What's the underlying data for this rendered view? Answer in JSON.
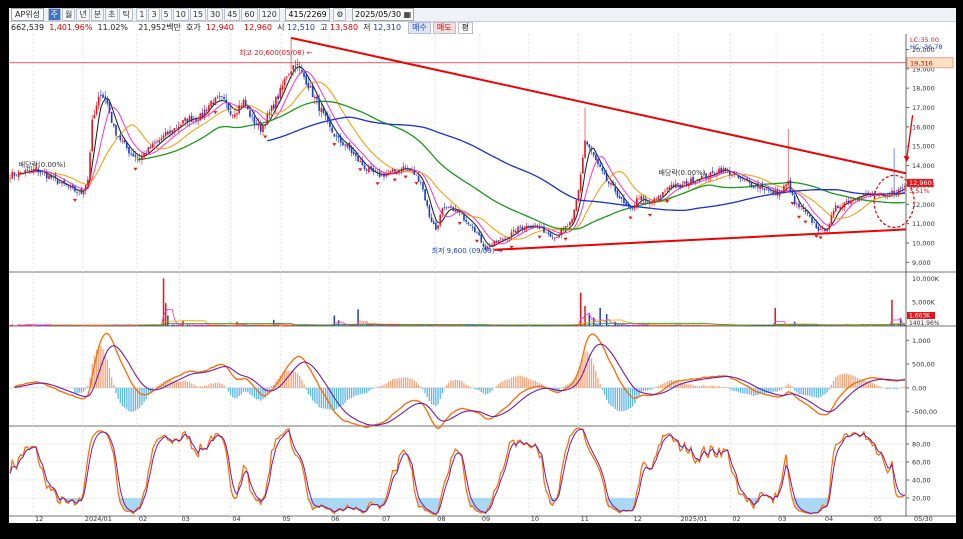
{
  "toolbar": {
    "stock_name": "AP위성",
    "period_buttons": [
      "주",
      "월",
      "년",
      "분",
      "초",
      "틱"
    ],
    "interval_buttons": [
      "1",
      "3",
      "5",
      "10",
      "15",
      "30",
      "45",
      "60",
      "120"
    ],
    "bar_count": "415/2269",
    "date": "2025/05/30"
  },
  "quote": {
    "volume": "662,539",
    "turnover": "1,401.96%",
    "change_rate": "11.02%",
    "amount": "21,952백만",
    "hoga_label": "호가",
    "ask": "12,940",
    "bid": "12,960",
    "open_label": "시",
    "open": "12,510",
    "high_label": "고",
    "high": "13,580",
    "low_label": "저",
    "low": "12,310",
    "buy_label": "매수",
    "sell_label": "매도",
    "flat_label": "평"
  },
  "colors": {
    "up": "#e8141c",
    "down": "#1a3fd0",
    "ma5": "#1a1a1a",
    "ma10": "#ff33cc",
    "ma20": "#ff9900",
    "ma60": "#1a9a1a",
    "ma120": "#1a2fd0",
    "macd": "#ff6a00",
    "signal": "#7a1aa0",
    "trend": "#ee0000"
  },
  "chart_data": [
    {
      "type": "candlestick",
      "panel": "price",
      "y_range": [
        8500,
        20800
      ],
      "y_ticks": [
        "9,000",
        "10,000",
        "11,000",
        "12,000",
        "13,000",
        "14,000",
        "15,000",
        "16,000",
        "17,000",
        "18,000",
        "19,000",
        "20,000"
      ],
      "x_ticks": [
        "12",
        "2024/01",
        "02",
        "03",
        "04",
        "05",
        "06",
        "07",
        "08",
        "09",
        "10",
        "11",
        "12",
        "2025/01",
        "02",
        "03",
        "04",
        "05",
        "05/30"
      ],
      "close_anchors": [
        [
          0,
          13500
        ],
        [
          12,
          13800
        ],
        [
          25,
          13000
        ],
        [
          30,
          12700
        ],
        [
          33,
          12600
        ],
        [
          36,
          13300
        ],
        [
          38,
          16200
        ],
        [
          42,
          17800
        ],
        [
          45,
          17200
        ],
        [
          48,
          15900
        ],
        [
          52,
          15200
        ],
        [
          56,
          14600
        ],
        [
          60,
          14400
        ],
        [
          64,
          14800
        ],
        [
          70,
          15400
        ],
        [
          76,
          15900
        ],
        [
          82,
          16400
        ],
        [
          88,
          16500
        ],
        [
          93,
          17300
        ],
        [
          98,
          17400
        ],
        [
          103,
          16700
        ],
        [
          108,
          17300
        ],
        [
          112,
          16400
        ],
        [
          116,
          15900
        ],
        [
          120,
          16700
        ],
        [
          125,
          17800
        ],
        [
          128,
          18700
        ],
        [
          132,
          19300
        ],
        [
          137,
          18400
        ],
        [
          140,
          17700
        ],
        [
          144,
          16800
        ],
        [
          148,
          15900
        ],
        [
          152,
          15300
        ],
        [
          156,
          15000
        ],
        [
          160,
          14400
        ],
        [
          165,
          13800
        ],
        [
          170,
          13500
        ],
        [
          176,
          13600
        ],
        [
          182,
          13900
        ],
        [
          186,
          13700
        ],
        [
          190,
          13200
        ],
        [
          194,
          11400
        ],
        [
          197,
          10700
        ],
        [
          200,
          11700
        ],
        [
          205,
          11800
        ],
        [
          210,
          11300
        ],
        [
          214,
          10900
        ],
        [
          217,
          10300
        ],
        [
          220,
          9700
        ],
        [
          224,
          10000
        ],
        [
          230,
          10300
        ],
        [
          236,
          10800
        ],
        [
          242,
          10900
        ],
        [
          248,
          10600
        ],
        [
          252,
          10300
        ],
        [
          256,
          10700
        ],
        [
          260,
          11100
        ],
        [
          263,
          12700
        ],
        [
          266,
          15300
        ],
        [
          269,
          14700
        ],
        [
          272,
          14000
        ],
        [
          276,
          13200
        ],
        [
          280,
          12700
        ],
        [
          284,
          12000
        ],
        [
          287,
          11700
        ],
        [
          291,
          12400
        ],
        [
          295,
          12000
        ],
        [
          300,
          12300
        ],
        [
          305,
          13000
        ],
        [
          310,
          12900
        ],
        [
          315,
          13200
        ],
        [
          320,
          13400
        ],
        [
          324,
          13500
        ],
        [
          328,
          13800
        ],
        [
          332,
          13700
        ],
        [
          336,
          13400
        ],
        [
          340,
          13200
        ],
        [
          344,
          13000
        ],
        [
          348,
          12900
        ],
        [
          352,
          12600
        ],
        [
          356,
          12600
        ],
        [
          360,
          13100
        ],
        [
          363,
          12000
        ],
        [
          366,
          11800
        ],
        [
          369,
          11400
        ],
        [
          372,
          11000
        ],
        [
          375,
          10600
        ],
        [
          378,
          10800
        ],
        [
          382,
          11800
        ],
        [
          386,
          12100
        ],
        [
          390,
          12300
        ],
        [
          394,
          12500
        ],
        [
          398,
          12500
        ],
        [
          402,
          12500
        ],
        [
          405,
          12300
        ],
        [
          408,
          12600
        ],
        [
          411,
          12700
        ],
        [
          414,
          12950
        ]
      ],
      "ma_periods": [
        5,
        10,
        20,
        60,
        120
      ],
      "reference_line": "19,316",
      "price_tags": [
        "12,960",
        "3.51%"
      ],
      "legend_top": [
        "LC:35.00",
        "HC:-36.78"
      ],
      "annotations": [
        {
          "text": "최고 20,600(05/08) ←",
          "kind": "high"
        },
        {
          "text": "최저 9,600 (09/09) →",
          "kind": "low"
        },
        {
          "text": "배당락(0.00%)",
          "kind": "ex-div"
        },
        {
          "text": "배당락(0.00%)",
          "kind": "ex-div"
        }
      ]
    },
    {
      "type": "bar",
      "panel": "volume",
      "y_ticks": [
        "10,000K",
        "5,000K"
      ],
      "labels": [
        "1,663K",
        "1401.96%"
      ],
      "spikes": [
        [
          71,
          10000
        ],
        [
          72,
          4800
        ],
        [
          73,
          2200
        ],
        [
          80,
          1200
        ],
        [
          105,
          900
        ],
        [
          122,
          1300
        ],
        [
          150,
          2200
        ],
        [
          152,
          1200
        ],
        [
          161,
          3500
        ],
        [
          264,
          7000
        ],
        [
          266,
          4200
        ],
        [
          268,
          2400
        ],
        [
          270,
          1800
        ],
        [
          273,
          3800
        ],
        [
          276,
          2500
        ],
        [
          280,
          900
        ],
        [
          354,
          3800
        ],
        [
          363,
          900
        ],
        [
          408,
          5500
        ],
        [
          412,
          1700
        ]
      ]
    },
    {
      "type": "line",
      "panel": "macd",
      "y_ticks": [
        "1,000",
        "500,00",
        "0,00",
        "-500,00"
      ],
      "series": [
        {
          "name": "MACD"
        },
        {
          "name": "Signal"
        }
      ],
      "histogram": true
    },
    {
      "type": "line",
      "panel": "stochastic",
      "y_ticks": [
        "80,00",
        "60,00",
        "40,00",
        "20,00"
      ],
      "series": [
        {
          "name": "%K"
        },
        {
          "name": "%D"
        }
      ]
    }
  ]
}
